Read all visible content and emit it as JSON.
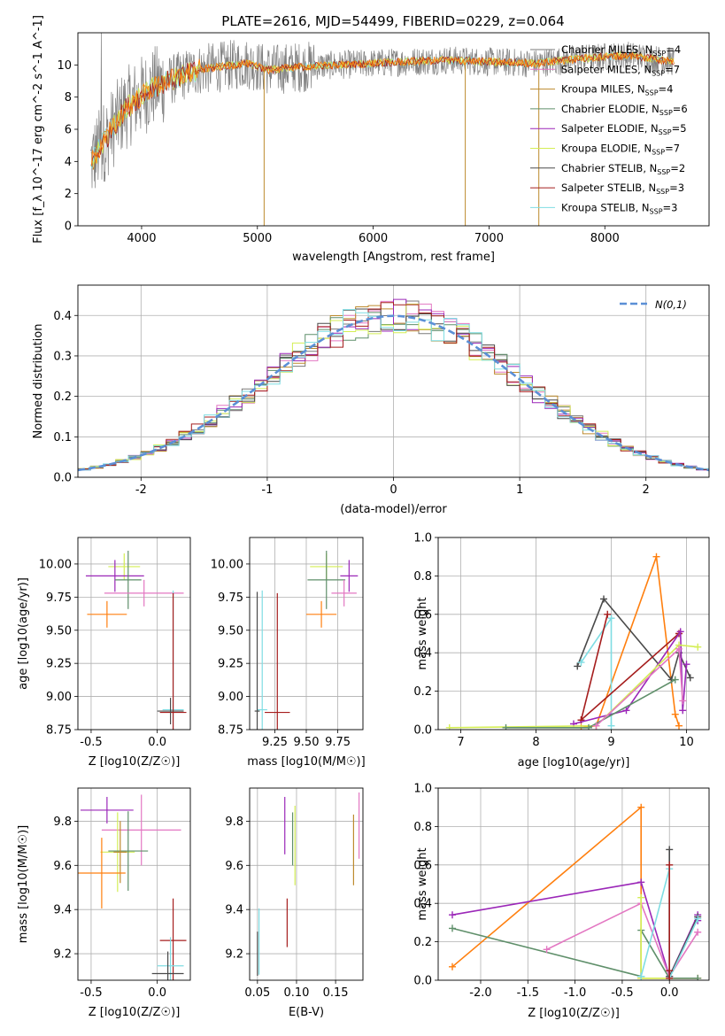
{
  "figure": {
    "title": "PLATE=2616, MJD=54499, FIBERID=0229, z=0.064"
  },
  "colors": {
    "data": "#808080",
    "gauss": "#5b8fd6",
    "models": [
      "#7a7a7a",
      "#e377c2",
      "#bd8a2d",
      "#5f8f6a",
      "#9b27b8",
      "#d4ee55",
      "#4a4a4a",
      "#a51d1d",
      "#7fdde3",
      "#ff7f0e"
    ]
  },
  "chart_data": [
    {
      "id": "spectrum",
      "type": "line",
      "xlabel": "wavelength [Angstrom, rest frame]",
      "ylabel": "Flux [f_λ 10^-17 erg cm^-2 s^-1 A^-1]",
      "xlim": [
        3450,
        8900
      ],
      "ylim": [
        0,
        12
      ],
      "xticks": [
        4000,
        5000,
        6000,
        7000,
        8000
      ],
      "yticks": [
        0,
        2,
        4,
        6,
        8,
        10
      ],
      "grid": false,
      "legend_position": "right",
      "legend": [
        {
          "name": "Chabrier MILES",
          "nssp": "4"
        },
        {
          "name": "Salpeter MILES",
          "nssp": "7"
        },
        {
          "name": "Kroupa MILES",
          "nssp": "4"
        },
        {
          "name": "Chabrier ELODIE",
          "nssp": "6"
        },
        {
          "name": "Salpeter ELODIE",
          "nssp": "5"
        },
        {
          "name": "Kroupa ELODIE",
          "nssp": "7"
        },
        {
          "name": "Chabrier STELIB",
          "nssp": "2"
        },
        {
          "name": "Salpeter STELIB",
          "nssp": "3"
        },
        {
          "name": "Kroupa STELIB",
          "nssp": "3"
        }
      ],
      "continuum": {
        "wavelength": [
          3550,
          3700,
          3850,
          3950,
          4100,
          4300,
          4500,
          4700,
          4900,
          5100,
          5400,
          5700,
          6000,
          6300,
          6600,
          7000,
          7400,
          7800,
          8200,
          8600
        ],
        "flux": [
          3.8,
          5.5,
          7.2,
          7.8,
          8.6,
          9.2,
          9.7,
          9.9,
          10.1,
          9.7,
          9.9,
          10.0,
          10.1,
          10.2,
          10.3,
          10.2,
          10.1,
          10.4,
          10.6,
          10.2
        ]
      },
      "gaps": [
        {
          "wavelength": 5058,
          "flux": 0
        },
        {
          "wavelength": 6795,
          "flux": 0
        },
        {
          "wavelength": 7430,
          "flux": 0
        }
      ]
    },
    {
      "id": "residuals",
      "type": "histogram",
      "xlabel": "(data-model)/error",
      "ylabel": "Normed distribution",
      "xlim": [
        -2.5,
        2.5
      ],
      "ylim": [
        0,
        0.475
      ],
      "xticks": [
        -2,
        -1,
        0,
        1,
        2
      ],
      "yticks": [
        0.0,
        0.1,
        0.2,
        0.3,
        0.4
      ],
      "grid": true,
      "bin_width": 0.1,
      "legend_label": "N(0,1)",
      "legend_position": "top-right"
    },
    {
      "id": "age-vs-Z",
      "type": "errorbar",
      "xlabel": "Z [log10(Z/Z☉)]",
      "ylabel": "age [log10(age/yr)]",
      "xlim": [
        -0.6,
        0.25
      ],
      "ylim": [
        8.75,
        10.2
      ],
      "xticks": [
        -0.5,
        0.0
      ],
      "yticks": [
        8.75,
        9.0,
        9.25,
        9.5,
        9.75,
        10.0
      ],
      "points": [
        {
          "x": -0.25,
          "xe": 0.12,
          "y": 9.98,
          "ye": 0.1,
          "c": 5
        },
        {
          "x": -0.32,
          "xe": 0.22,
          "y": 9.91,
          "ye": 0.12,
          "c": 4
        },
        {
          "x": -0.22,
          "xe": 0.1,
          "y": 9.88,
          "ye": 0.22,
          "c": 3
        },
        {
          "x": -0.1,
          "xe": 0.3,
          "y": 9.78,
          "ye": 0.1,
          "c": 1
        },
        {
          "x": -0.38,
          "xe": 0.15,
          "y": 9.62,
          "ye": 0.1,
          "c": 9
        },
        {
          "x": 0.12,
          "xe": 0.08,
          "y": 8.9,
          "ye": 0.9,
          "c": 8
        },
        {
          "x": 0.12,
          "xe": 0.1,
          "y": 8.88,
          "ye": 0.9,
          "c": 7
        },
        {
          "x": 0.1,
          "xe": 0.1,
          "y": 8.89,
          "ye": 0.1,
          "c": 6
        }
      ]
    },
    {
      "id": "age-vs-mass",
      "type": "errorbar",
      "xlabel": "mass [log10(M/M☉)]",
      "ylabel": "",
      "xlim": [
        9.05,
        9.95
      ],
      "ylim": [
        8.75,
        10.2
      ],
      "xticks": [
        9.25,
        9.5,
        9.75
      ],
      "yticks": [
        8.75,
        9.0,
        9.25,
        9.5,
        9.75,
        10.0
      ],
      "points": [
        {
          "x": 9.66,
          "xe": 0.13,
          "y": 9.98,
          "ye": 0.1,
          "c": 5
        },
        {
          "x": 9.84,
          "xe": 0.07,
          "y": 9.91,
          "ye": 0.12,
          "c": 4
        },
        {
          "x": 9.66,
          "xe": 0.15,
          "y": 9.88,
          "ye": 0.22,
          "c": 3
        },
        {
          "x": 9.8,
          "xe": 0.1,
          "y": 9.78,
          "ye": 0.1,
          "c": 1
        },
        {
          "x": 9.62,
          "xe": 0.12,
          "y": 9.62,
          "ye": 0.1,
          "c": 9
        },
        {
          "x": 9.15,
          "xe": 0.04,
          "y": 8.9,
          "ye": 0.9,
          "c": 8
        },
        {
          "x": 9.27,
          "xe": 0.1,
          "y": 8.88,
          "ye": 0.9,
          "c": 7
        },
        {
          "x": 9.11,
          "xe": 0.02,
          "y": 8.89,
          "ye": 0.9,
          "c": 6
        }
      ]
    },
    {
      "id": "weight-vs-age",
      "type": "line",
      "xlabel": "age [log10(age/yr)]",
      "ylabel": "mass weight",
      "xlim": [
        6.7,
        10.3
      ],
      "ylim": [
        0,
        1
      ],
      "xticks": [
        7,
        8,
        9,
        10
      ],
      "yticks": [
        0.0,
        0.2,
        0.4,
        0.6,
        0.8,
        1.0
      ],
      "grid": true,
      "series": [
        {
          "c": 9,
          "x": [
            8.6,
            8.8,
            9.6,
            9.85,
            9.9
          ],
          "y": [
            0.01,
            0.02,
            0.9,
            0.08,
            0.02
          ]
        },
        {
          "c": 6,
          "x": [
            8.55,
            8.9,
            9.8,
            9.9,
            10.05
          ],
          "y": [
            0.33,
            0.68,
            0.26,
            0.4,
            0.27
          ]
        },
        {
          "c": 8,
          "x": [
            8.6,
            9.0,
            9.0
          ],
          "y": [
            0.35,
            0.58,
            0.02
          ]
        },
        {
          "c": 7,
          "x": [
            8.6,
            8.95,
            8.6,
            9.9
          ],
          "y": [
            0.05,
            0.6,
            0.05,
            0.5
          ]
        },
        {
          "c": 4,
          "x": [
            8.5,
            9.2,
            9.92,
            9.95,
            10.0
          ],
          "y": [
            0.03,
            0.1,
            0.51,
            0.1,
            0.34
          ]
        },
        {
          "c": 5,
          "x": [
            6.85,
            8.8,
            9.9,
            10.15
          ],
          "y": [
            0.01,
            0.02,
            0.44,
            0.43
          ]
        },
        {
          "c": 3,
          "x": [
            7.6,
            8.7,
            9.85
          ],
          "y": [
            0.01,
            0.01,
            0.26
          ]
        },
        {
          "c": 1,
          "x": [
            8.8,
            9.9,
            9.95
          ],
          "y": [
            0.02,
            0.42,
            0.15
          ]
        }
      ]
    },
    {
      "id": "mass-vs-Z",
      "type": "errorbar",
      "xlabel": "Z [log10(Z/Z☉)]",
      "ylabel": "mass [log10(M/M☉)]",
      "xlim": [
        -0.6,
        0.25
      ],
      "ylim": [
        9.08,
        9.95
      ],
      "xticks": [
        -0.5,
        0.0
      ],
      "yticks": [
        9.2,
        9.4,
        9.6,
        9.8
      ],
      "points": [
        {
          "x": -0.38,
          "xe": 0.2,
          "y": 9.85,
          "ye": 0.06,
          "c": 4
        },
        {
          "x": -0.12,
          "xe": 0.3,
          "y": 9.76,
          "ye": 0.16,
          "c": 1
        },
        {
          "x": -0.3,
          "xe": 0.13,
          "y": 9.66,
          "ye": 0.18,
          "c": 5
        },
        {
          "x": -0.22,
          "xe": 0.15,
          "y": 9.665,
          "ye": 0.18,
          "c": 3
        },
        {
          "x": -0.28,
          "xe": 0.05,
          "y": 9.66,
          "ye": 0.14,
          "c": 2
        },
        {
          "x": -0.42,
          "xe": 0.18,
          "y": 9.565,
          "ye": 0.16,
          "c": 9
        },
        {
          "x": 0.12,
          "xe": 0.1,
          "y": 9.26,
          "ye": 0.19,
          "c": 7
        },
        {
          "x": 0.1,
          "xe": 0.1,
          "y": 9.145,
          "ye": 0.13,
          "c": 8
        },
        {
          "x": 0.08,
          "xe": 0.12,
          "y": 9.11,
          "ye": 0.1,
          "c": 6
        }
      ]
    },
    {
      "id": "mass-vs-EBV",
      "type": "errorbar",
      "xlabel": "E(B-V)",
      "ylabel": "",
      "xlim": [
        0.04,
        0.185
      ],
      "ylim": [
        9.08,
        9.95
      ],
      "xticks": [
        0.05,
        0.1,
        0.15
      ],
      "yticks": [
        9.2,
        9.4,
        9.6,
        9.8
      ],
      "points": [
        {
          "x": 0.085,
          "xe": 0,
          "y": 9.78,
          "ye": 0.13,
          "c": 4
        },
        {
          "x": 0.095,
          "xe": 0,
          "y": 9.72,
          "ye": 0.12,
          "c": 3
        },
        {
          "x": 0.098,
          "xe": 0,
          "y": 9.69,
          "ye": 0.18,
          "c": 5
        },
        {
          "x": 0.173,
          "xe": 0,
          "y": 9.67,
          "ye": 0.16,
          "c": 2
        },
        {
          "x": 0.18,
          "xe": 0,
          "y": 9.78,
          "ye": 0.15,
          "c": 1
        },
        {
          "x": 0.088,
          "xe": 0,
          "y": 9.34,
          "ye": 0.11,
          "c": 7
        },
        {
          "x": 0.052,
          "xe": 0,
          "y": 9.255,
          "ye": 0.15,
          "c": 8
        },
        {
          "x": 0.05,
          "xe": 0,
          "y": 9.2,
          "ye": 0.1,
          "c": 6
        }
      ]
    },
    {
      "id": "weight-vs-Z",
      "type": "line",
      "xlabel": "Z [log10(Z/Z☉)]",
      "ylabel": "mass weight",
      "xlim": [
        -2.45,
        0.42
      ],
      "ylim": [
        0,
        1
      ],
      "xticks": [
        -2.0,
        -1.5,
        -1.0,
        -0.5,
        0.0
      ],
      "yticks": [
        0.0,
        0.2,
        0.4,
        0.6,
        0.8,
        1.0
      ],
      "grid": true,
      "series": [
        {
          "c": 9,
          "x": [
            -2.3,
            -0.3,
            -0.3,
            0.3
          ],
          "y": [
            0.07,
            0.9,
            0.01,
            0.01
          ]
        },
        {
          "c": 3,
          "x": [
            -2.3,
            -0.3,
            -0.3,
            0.0,
            0.3
          ],
          "y": [
            0.27,
            0.02,
            0.26,
            0.01,
            0.01
          ]
        },
        {
          "c": 4,
          "x": [
            -2.3,
            -0.3,
            0.0,
            0.3,
            0.3
          ],
          "y": [
            0.34,
            0.51,
            0.02,
            0.34,
            0.31
          ]
        },
        {
          "c": 1,
          "x": [
            -1.3,
            -0.3,
            0.0,
            0.3
          ],
          "y": [
            0.16,
            0.4,
            0.02,
            0.25
          ]
        },
        {
          "c": 5,
          "x": [
            -0.3,
            -0.3,
            0.0
          ],
          "y": [
            0.43,
            0.01,
            0.01
          ]
        },
        {
          "c": 6,
          "x": [
            0.0,
            0.0,
            0.3
          ],
          "y": [
            0.68,
            0.02,
            0.33
          ]
        },
        {
          "c": 8,
          "x": [
            -0.3,
            0.0,
            0.0,
            0.3
          ],
          "y": [
            0.02,
            0.58,
            0.01,
            0.32
          ]
        },
        {
          "c": 7,
          "x": [
            0.0,
            0.0,
            0.0
          ],
          "y": [
            0.6,
            0.01,
            0.05
          ]
        }
      ]
    }
  ]
}
